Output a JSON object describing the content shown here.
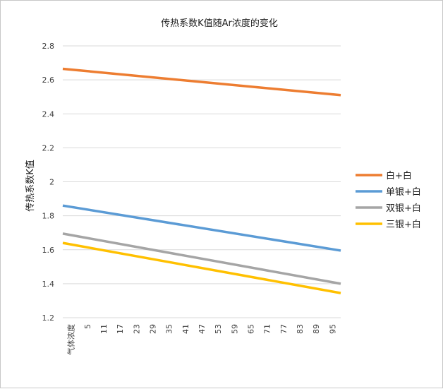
{
  "chart_data": {
    "type": "line",
    "title": "传热系数K值随Ar浓度的变化",
    "ylabel": "传热系数K值",
    "xlabel": "",
    "x_first_label": "气体浓度",
    "categories": [
      "气体浓度",
      "5",
      "11",
      "17",
      "23",
      "29",
      "35",
      "41",
      "47",
      "53",
      "59",
      "65",
      "71",
      "77",
      "83",
      "89",
      "95"
    ],
    "x_start": 0,
    "x_end": 99,
    "ylim": [
      1.2,
      2.8
    ],
    "yticks": [
      "1.2",
      "1.4",
      "1.6",
      "1.8",
      "2",
      "2.2",
      "2.4",
      "2.6",
      "2.8"
    ],
    "grid": true,
    "legend_position": "right",
    "series": [
      {
        "name": "白+白",
        "color": "#ED7D31",
        "start": 2.665,
        "end": 2.51
      },
      {
        "name": "单银+白",
        "color": "#5B9BD5",
        "start": 1.86,
        "end": 1.595
      },
      {
        "name": "双银+白",
        "color": "#A5A5A5",
        "start": 1.695,
        "end": 1.4
      },
      {
        "name": "三银+白",
        "color": "#FFC000",
        "start": 1.64,
        "end": 1.345
      }
    ]
  }
}
